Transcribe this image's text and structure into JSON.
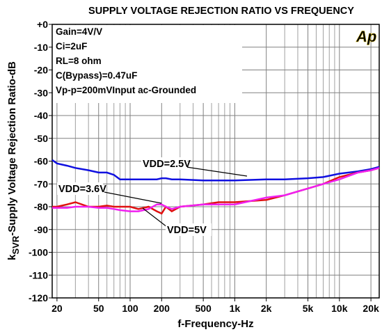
{
  "chart_data": {
    "type": "line",
    "title": "SUPPLY VOLTAGE REJECTION RATIO VS FREQUENCY",
    "xlabel": "f-Frequency-Hz",
    "ylabel": {
      "prefix": "k",
      "subscript": "SVR",
      "text": "-Supply Voltage Rejection Ratio-dB"
    },
    "info": [
      "Gain=4V/V",
      "Ci=2uF",
      "RL=8 ohm",
      "C(Bypass)=0.47uF",
      "Vp-p=200mVInput ac-Grounded"
    ],
    "logo": "Ap",
    "xscale": "log",
    "xlim": [
      18,
      24000
    ],
    "ylim": [
      -120,
      0
    ],
    "xticks": [
      20,
      50,
      100,
      200,
      500,
      {
        "value": 1000,
        "label": "1k"
      },
      {
        "value": 2000,
        "label": "2k"
      },
      {
        "value": 5000,
        "label": "5k"
      },
      {
        "value": 10000,
        "label": "10k"
      },
      {
        "value": 20000,
        "label": "20k"
      }
    ],
    "minor_xticks": [
      30,
      40,
      60,
      70,
      80,
      90,
      300,
      400,
      600,
      700,
      800,
      900,
      3000,
      4000,
      6000,
      7000,
      8000,
      9000
    ],
    "yticks": [
      {
        "value": 0,
        "label": "+0"
      },
      -10,
      -20,
      -30,
      -40,
      -50,
      -60,
      -70,
      -80,
      -90,
      -100,
      -110,
      -120
    ],
    "grid": true,
    "x": [
      18,
      20,
      25,
      30,
      40,
      50,
      60,
      70,
      80,
      100,
      120,
      150,
      180,
      200,
      220,
      250,
      300,
      500,
      700,
      1000,
      2000,
      3000,
      5000,
      7000,
      10000,
      15000,
      20000,
      24000
    ],
    "series": [
      {
        "name": "VDD=2.5V",
        "color": "#1010e0",
        "values": [
          -59.5,
          -61,
          -62,
          -63,
          -64,
          -65,
          -65,
          -66,
          -68,
          -68,
          -68,
          -68,
          -68,
          -67.5,
          -67.5,
          -68,
          -68,
          -68.5,
          -68.5,
          -68.5,
          -68,
          -68,
          -67.5,
          -67,
          -65.5,
          -64.5,
          -63.5,
          -62.5
        ]
      },
      {
        "name": "VDD=3.6V",
        "color": "#e01010",
        "values": [
          -80,
          -80,
          -79,
          -78,
          -80,
          -80,
          -79.5,
          -80,
          -80,
          -80,
          -81,
          -80,
          -82,
          -83,
          -80,
          -82,
          -80,
          -79,
          -78,
          -78,
          -77,
          -75,
          -72,
          -70,
          -67,
          -65,
          -64,
          -63
        ]
      },
      {
        "name": "VDD=5V",
        "color": "#f020f0",
        "values": [
          -80.5,
          -80.5,
          -80.5,
          -80,
          -80,
          -80.5,
          -80.5,
          -81,
          -81.5,
          -82,
          -82,
          -81,
          -79,
          -79,
          -80,
          -81,
          -80,
          -79,
          -79,
          -79,
          -76,
          -75,
          -72,
          -70,
          -68,
          -65,
          -64,
          -63
        ]
      }
    ]
  }
}
